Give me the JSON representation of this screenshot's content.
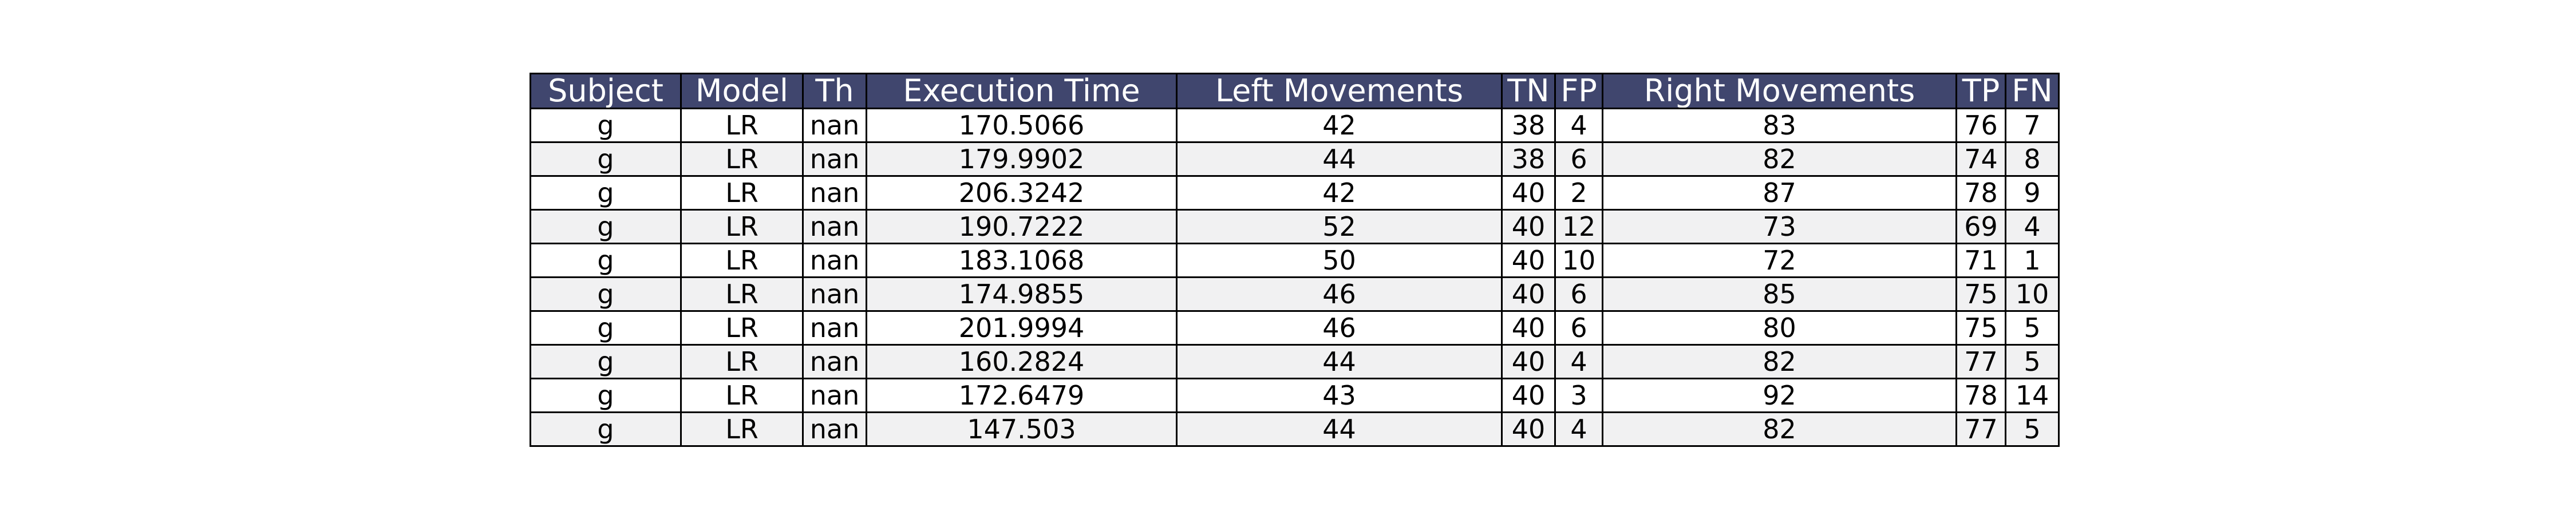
{
  "chart_data": {
    "type": "table",
    "columns": [
      "Subject",
      "Model",
      "Th",
      "Execution Time",
      "Left Movements",
      "TN",
      "FP",
      "Right Movements",
      "TP",
      "FN"
    ],
    "rows": [
      [
        "g",
        "LR",
        "nan",
        "170.5066",
        "42",
        "38",
        "4",
        "83",
        "76",
        "7"
      ],
      [
        "g",
        "LR",
        "nan",
        "179.9902",
        "44",
        "38",
        "6",
        "82",
        "74",
        "8"
      ],
      [
        "g",
        "LR",
        "nan",
        "206.3242",
        "42",
        "40",
        "2",
        "87",
        "78",
        "9"
      ],
      [
        "g",
        "LR",
        "nan",
        "190.7222",
        "52",
        "40",
        "12",
        "73",
        "69",
        "4"
      ],
      [
        "g",
        "LR",
        "nan",
        "183.1068",
        "50",
        "40",
        "10",
        "72",
        "71",
        "1"
      ],
      [
        "g",
        "LR",
        "nan",
        "174.9855",
        "46",
        "40",
        "6",
        "85",
        "75",
        "10"
      ],
      [
        "g",
        "LR",
        "nan",
        "201.9994",
        "46",
        "40",
        "6",
        "80",
        "75",
        "5"
      ],
      [
        "g",
        "LR",
        "nan",
        "160.2824",
        "44",
        "40",
        "4",
        "82",
        "77",
        "5"
      ],
      [
        "g",
        "LR",
        "nan",
        "172.6479",
        "43",
        "40",
        "3",
        "92",
        "78",
        "14"
      ],
      [
        "g",
        "LR",
        "nan",
        "147.503",
        "44",
        "40",
        "4",
        "82",
        "77",
        "5"
      ]
    ],
    "colors": {
      "header_bg": "#40466e",
      "header_text": "#ffffff",
      "row_alt": "#f1f1f2",
      "row_base": "#ffffff",
      "border": "#000000"
    }
  }
}
